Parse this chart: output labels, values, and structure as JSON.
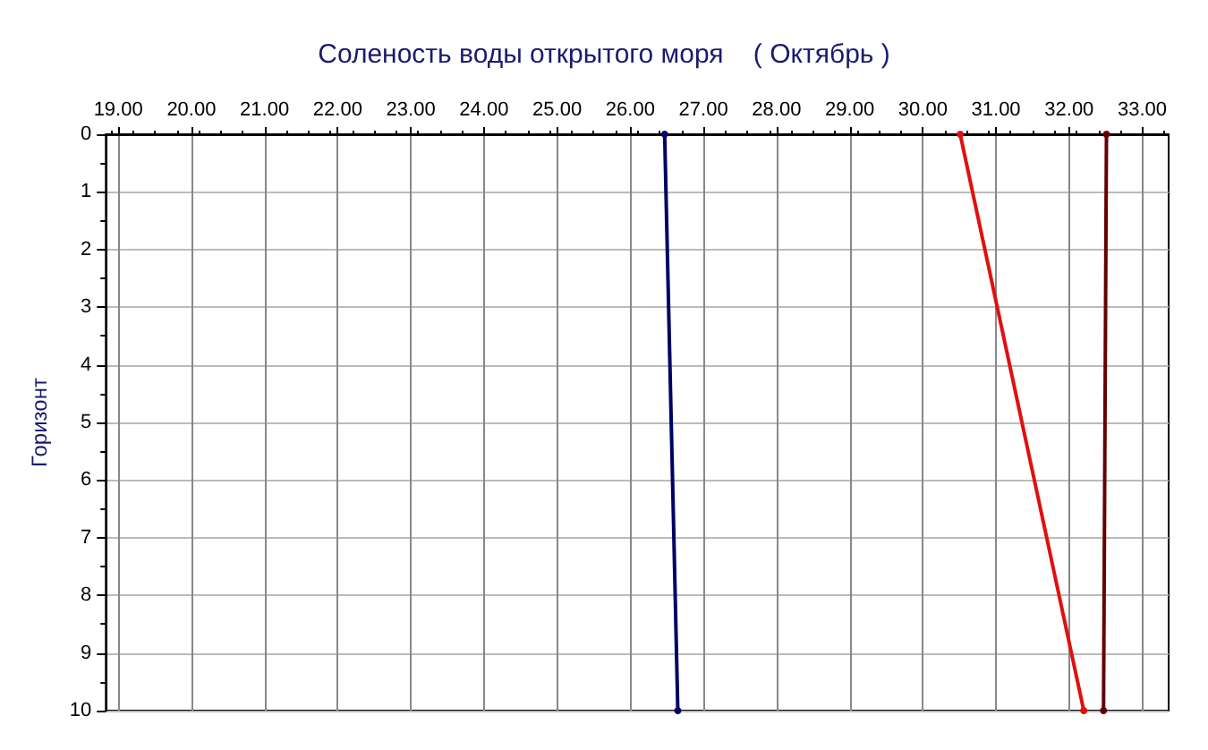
{
  "chart_data": {
    "type": "line",
    "title": "Соленость воды открытого моря    ( Октябрь )",
    "ylabel": "Горизонт",
    "xlim": [
      18.83,
      33.36
    ],
    "xticks": [
      {
        "value": 19,
        "label": "19.00"
      },
      {
        "value": 20,
        "label": "20.00"
      },
      {
        "value": 21,
        "label": "21.00"
      },
      {
        "value": 22,
        "label": "22.00"
      },
      {
        "value": 23,
        "label": "23.00"
      },
      {
        "value": 24,
        "label": "24.00"
      },
      {
        "value": 25,
        "label": "25.00"
      },
      {
        "value": 26,
        "label": "26.00"
      },
      {
        "value": 27,
        "label": "27.00"
      },
      {
        "value": 28,
        "label": "28.00"
      },
      {
        "value": 29,
        "label": "29.00"
      },
      {
        "value": 30,
        "label": "30.00"
      },
      {
        "value": 31,
        "label": "31.00"
      },
      {
        "value": 32,
        "label": "32.00"
      },
      {
        "value": 33,
        "label": "33.00"
      }
    ],
    "ylim": [
      10,
      0
    ],
    "yticks": [
      0,
      1,
      2,
      3,
      4,
      5,
      6,
      7,
      8,
      9,
      10
    ],
    "grid": true,
    "marker": "circle",
    "line_style": "solid",
    "series": [
      {
        "color": "#000066",
        "x": [
          26.47,
          26.65
        ],
        "values": [
          0,
          10
        ]
      },
      {
        "color": "#e01010",
        "x": [
          30.51,
          32.2
        ],
        "values": [
          0,
          10
        ]
      },
      {
        "color": "#660000",
        "x": [
          32.51,
          32.47
        ],
        "values": [
          0,
          10
        ]
      }
    ]
  }
}
